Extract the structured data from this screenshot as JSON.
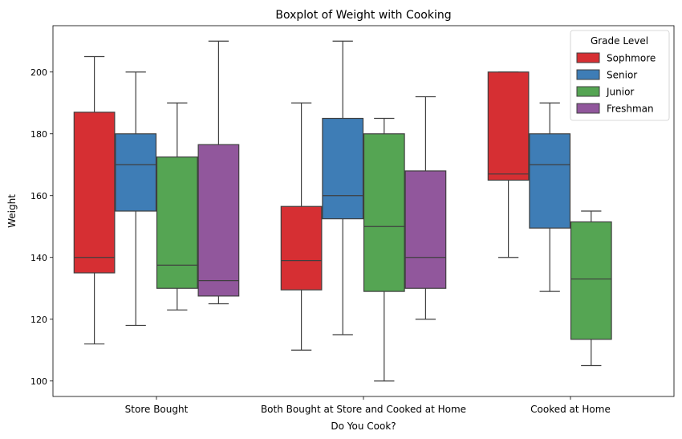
{
  "chart_data": {
    "type": "boxplot",
    "title": "Boxplot of Weight with Cooking",
    "xlabel": "Do You Cook?",
    "ylabel": "Weight",
    "ylim": [
      95,
      215
    ],
    "yticks": [
      100,
      120,
      140,
      160,
      180,
      200
    ],
    "grid": false,
    "categories": [
      "Store Bought",
      "Both Bought at Store and Cooked at Home",
      "Cooked at Home"
    ],
    "legend": {
      "title": "Grade Level",
      "placement": "top-right",
      "entries": [
        "Sophmore",
        "Senior",
        "Junior",
        "Freshman"
      ]
    },
    "series": [
      {
        "name": "Sophmore",
        "color": "#d62f33",
        "boxes": [
          {
            "whislo": 112,
            "q1": 135,
            "med": 140,
            "q3": 187,
            "whishi": 205
          },
          {
            "whislo": 110,
            "q1": 129.5,
            "med": 139,
            "q3": 156.5,
            "whishi": 190
          },
          {
            "whislo": 140,
            "q1": 165,
            "med": 167,
            "q3": 200,
            "whishi": 200
          }
        ]
      },
      {
        "name": "Senior",
        "color": "#3e7db6",
        "boxes": [
          {
            "whislo": 118,
            "q1": 155,
            "med": 170,
            "q3": 180,
            "whishi": 200
          },
          {
            "whislo": 115,
            "q1": 152.5,
            "med": 160,
            "q3": 185,
            "whishi": 210
          },
          {
            "whislo": 129,
            "q1": 149.5,
            "med": 170,
            "q3": 180,
            "whishi": 190
          }
        ]
      },
      {
        "name": "Junior",
        "color": "#55a553",
        "boxes": [
          {
            "whislo": 123,
            "q1": 130,
            "med": 137.5,
            "q3": 172.5,
            "whishi": 190
          },
          {
            "whislo": 100,
            "q1": 129,
            "med": 150,
            "q3": 180,
            "whishi": 185
          },
          {
            "whislo": 105,
            "q1": 113.5,
            "med": 133,
            "q3": 151.5,
            "whishi": 155
          }
        ]
      },
      {
        "name": "Freshman",
        "color": "#91579c",
        "boxes": [
          {
            "whislo": 125,
            "q1": 127.5,
            "med": 132.5,
            "q3": 176.5,
            "whishi": 210
          },
          {
            "whislo": 120,
            "q1": 130,
            "med": 140,
            "q3": 168,
            "whishi": 192
          },
          null
        ]
      }
    ]
  }
}
